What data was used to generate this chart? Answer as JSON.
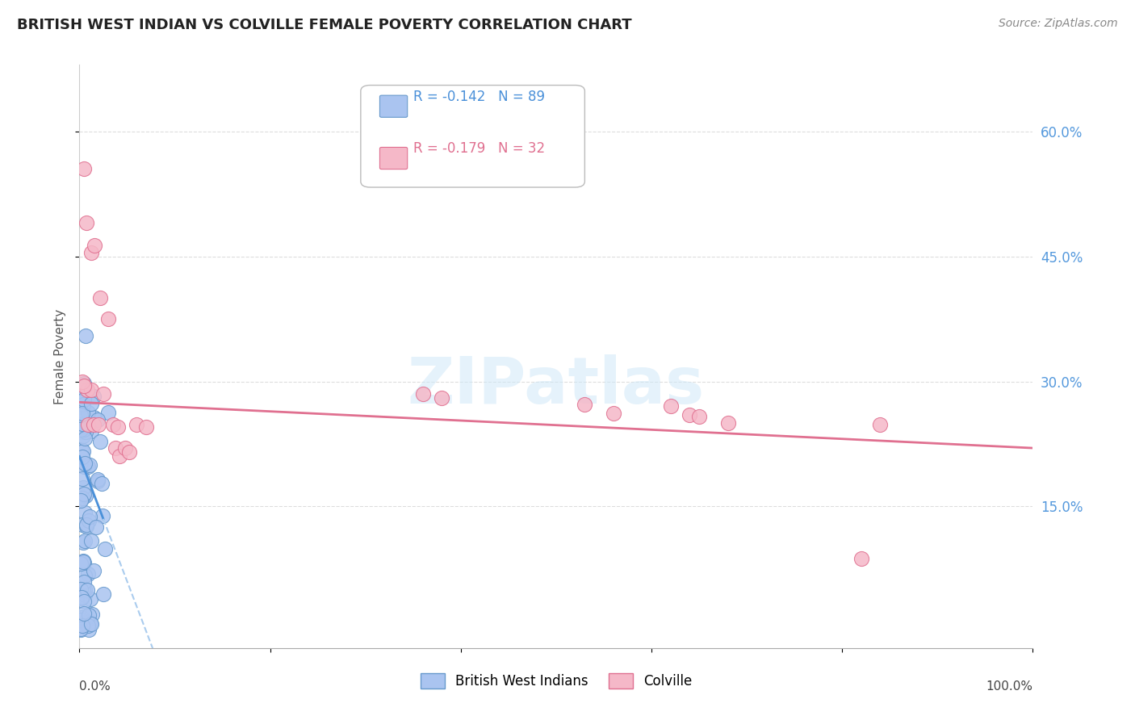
{
  "title": "BRITISH WEST INDIAN VS COLVILLE FEMALE POVERTY CORRELATION CHART",
  "source": "Source: ZipAtlas.com",
  "ylabel": "Female Poverty",
  "xlim": [
    0.0,
    1.0
  ],
  "ylim": [
    -0.02,
    0.68
  ],
  "yticks": [
    0.15,
    0.3,
    0.45,
    0.6
  ],
  "ytick_labels": [
    "15.0%",
    "30.0%",
    "45.0%",
    "60.0%"
  ],
  "grid_color": "#dddddd",
  "background_color": "#ffffff",
  "bwi_color": "#aac4f0",
  "bwi_edge_color": "#6699cc",
  "colville_color": "#f5b8c8",
  "colville_edge_color": "#e07090",
  "bwi_R": -0.142,
  "bwi_N": 89,
  "colville_R": -0.179,
  "colville_N": 32,
  "legend_label_bwi": "British West Indians",
  "legend_label_colville": "Colville"
}
